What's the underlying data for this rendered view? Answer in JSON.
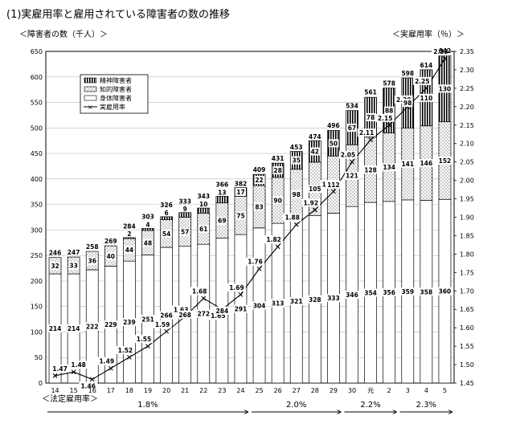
{
  "title": "(1)実雇用率と雇用されている障害者の数の推移",
  "chart_data": {
    "type": "bar",
    "title": "(1)実雇用率と雇用されている障害者の数の推移",
    "ylabel_left": "＜障害者の数（千人）＞",
    "ylabel_right": "＜実雇用率（％）＞",
    "xlabel": "＜法定雇用率＞",
    "categories": [
      "14",
      "15",
      "16",
      "17",
      "18",
      "19",
      "20",
      "21",
      "22",
      "23",
      "24",
      "25",
      "26",
      "27",
      "28",
      "29",
      "30",
      "元",
      "2",
      "3",
      "4",
      "5"
    ],
    "ylim_left": [
      0,
      650
    ],
    "ylim_right": [
      1.45,
      2.35
    ],
    "yticks_left": [
      "0",
      "50",
      "100",
      "150",
      "200",
      "250",
      "300",
      "350",
      "400",
      "450",
      "500",
      "550",
      "600",
      "650"
    ],
    "yticks_right": [
      "1.45",
      "1.50",
      "1.55",
      "1.60",
      "1.65",
      "1.70",
      "1.75",
      "1.80",
      "1.85",
      "1.90",
      "1.95",
      "2.00",
      "2.05",
      "2.10",
      "2.15",
      "2.20",
      "2.25",
      "2.30",
      "2.35"
    ],
    "grid": true,
    "legend_position": "top-left",
    "series": [
      {
        "name": "身体障害者",
        "pattern": "plain",
        "values": [
          214,
          214,
          222,
          229,
          239,
          251,
          266,
          268,
          272,
          284,
          291,
          304,
          313,
          321,
          328,
          333,
          346,
          354,
          356,
          359,
          358,
          360
        ]
      },
      {
        "name": "知的障害者",
        "pattern": "dotted",
        "values": [
          32,
          33,
          36,
          40,
          44,
          48,
          54,
          57,
          61,
          69,
          75,
          83,
          90,
          98,
          105,
          112,
          121,
          128,
          134,
          141,
          146,
          152
        ]
      },
      {
        "name": "精神障害者",
        "pattern": "vertical-stripes",
        "values": [
          null,
          null,
          null,
          null,
          2,
          4,
          6,
          9,
          10,
          13,
          17,
          22,
          28,
          35,
          42,
          50,
          67,
          78,
          88,
          98,
          110,
          130
        ]
      },
      {
        "name": "実雇用率",
        "type": "line",
        "values": [
          1.47,
          1.48,
          1.46,
          1.49,
          1.52,
          1.55,
          1.59,
          1.63,
          1.68,
          1.65,
          1.69,
          1.76,
          1.82,
          1.88,
          1.92,
          1.97,
          2.05,
          2.11,
          2.15,
          2.2,
          2.25,
          2.33
        ]
      }
    ],
    "totals": [
      246,
      247,
      258,
      269,
      284,
      303,
      326,
      333,
      343,
      366,
      382,
      409,
      431,
      453,
      474,
      496,
      534,
      561,
      578,
      598,
      614,
      642
    ],
    "legal_rates": [
      {
        "label": "1.8%",
        "from": "14",
        "to": "24"
      },
      {
        "label": "2.0%",
        "from": "25",
        "to": "29"
      },
      {
        "label": "2.2%",
        "from": "30",
        "to": "2"
      },
      {
        "label": "2.3%",
        "from": "3",
        "to": "5"
      }
    ]
  }
}
